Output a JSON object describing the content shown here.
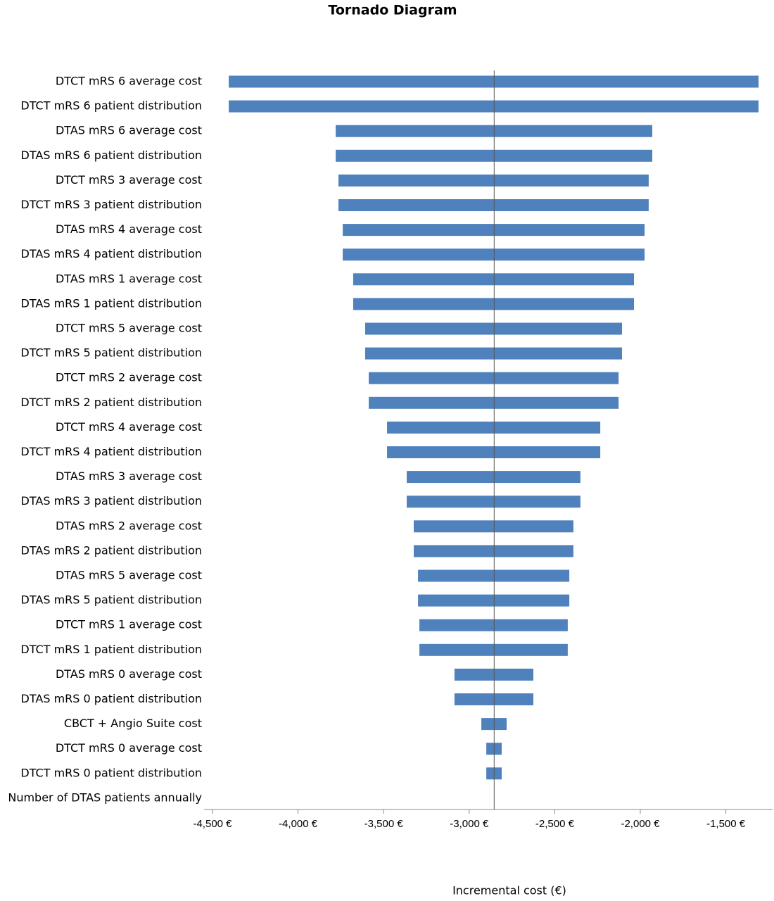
{
  "chart_data": {
    "type": "tornado",
    "title": "Tornado Diagram",
    "x_label": "Incremental cost (€)",
    "categories": [
      "DTCT mRS 6 average cost",
      "DTCT mRS 6 patient distribution",
      "DTAS mRS 6 average cost",
      "DTAS mRS 6 patient distribution",
      "DTCT mRS 3 average cost",
      "DTCT mRS 3 patient distribution",
      "DTAS mRS 4 average cost",
      "DTAS mRS 4 patient distribution",
      "DTAS mRS 1 average cost",
      "DTAS mRS 1 patient distribution",
      "DTCT mRS 5 average cost",
      "DTCT mRS 5 patient distribution",
      "DTCT mRS 2 average cost",
      "DTCT mRS 2 patient distribution",
      "DTCT mRS 4 average cost",
      "DTCT mRS 4 patient distribution",
      "DTAS mRS 3 average cost",
      "DTAS mRS 3 patient distribution",
      "DTAS mRS 2 average cost",
      "DTAS mRS 2 patient distribution",
      "DTAS mRS 5 average cost",
      "DTAS mRS 5 patient distribution",
      "DTCT mRS 1 average cost",
      "DTCT mRS 1 patient distribution",
      "DTAS mRS 0 average cost",
      "DTAS mRS 0 patient distribution",
      "CBCT + Angio Suite cost",
      "DTCT mRS 0 average cost",
      "DTCT mRS 0 patient distribution",
      "Number of DTAS patients annually"
    ],
    "base": -2854,
    "low": [
      -4405,
      -4405,
      -3780,
      -3780,
      -3764,
      -3764,
      -3739,
      -3739,
      -3678,
      -3678,
      -3608,
      -3608,
      -3587,
      -3587,
      -3480,
      -3480,
      -3365,
      -3365,
      -3324,
      -3324,
      -3299,
      -3299,
      -3291,
      -3291,
      -3086,
      -3086,
      -2929,
      -2900,
      -2900,
      null
    ],
    "high": [
      -1309,
      -1309,
      -1930,
      -1930,
      -1951,
      -1951,
      -1975,
      -1975,
      -2037,
      -2037,
      -2107,
      -2107,
      -2127,
      -2127,
      -2234,
      -2234,
      -2350,
      -2350,
      -2391,
      -2391,
      -2415,
      -2415,
      -2424,
      -2424,
      -2625,
      -2625,
      -2781,
      -2810,
      -2810,
      null
    ],
    "color": "#4f81bd",
    "xlim": [
      -4500,
      -1227
    ],
    "xticks": [
      {
        "value": -4500,
        "label": "-4,500 €"
      },
      {
        "value": -4000,
        "label": "-4,000 €"
      },
      {
        "value": -3500,
        "label": "-3,500 €"
      },
      {
        "value": -3000,
        "label": "-3,000 €"
      },
      {
        "value": -2500,
        "label": "-2,500 €"
      },
      {
        "value": -2000,
        "label": "-2,000 €"
      },
      {
        "value": -1500,
        "label": "-1,500 €"
      }
    ]
  }
}
